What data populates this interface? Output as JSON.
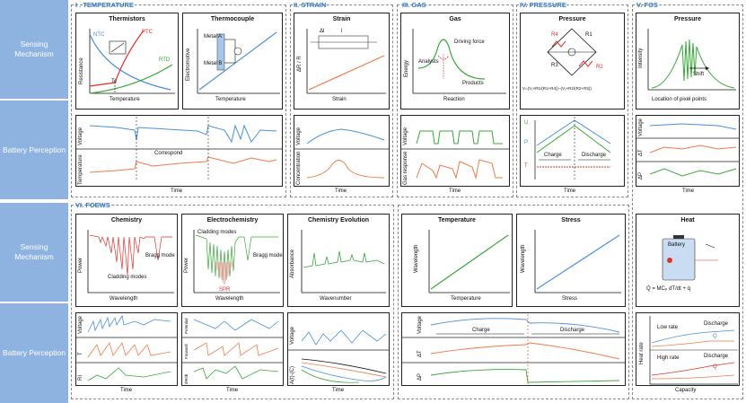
{
  "sidebar": {
    "top_mech": "Sensing Mechanism",
    "top_batt": "Battery Perception",
    "bot_mech": "Sensing Mechanism",
    "bot_batt": "Battery Perception"
  },
  "sections": {
    "temperature": "I . TEMPERATURE",
    "strain": "II. STRAIN",
    "gas": "III. GAS",
    "pressure": "IV. PRESSURE",
    "fos": "V. FOS",
    "foews": "VI. FOEWS"
  },
  "temperature": {
    "thermistors_title": "Thermistors",
    "thermocouple_title": "Thermocouple",
    "ntc": "NTC",
    "ptc": "PTC",
    "rtd": "RTD",
    "tc": "Tc",
    "resistance": "Resistance",
    "electromotive": "Electromotive",
    "temp_axis": "Temperature",
    "metal_a": "Metal A",
    "metal_b": "Metal B",
    "voltage": "Voltage",
    "temperature": "Temperature",
    "correspond": "Correspond",
    "time": "Time"
  },
  "strain": {
    "title": "Strain",
    "dr_r": "ΔR / R",
    "strain_axis": "Strain",
    "voltage": "Voltage",
    "concentration": "Concentration",
    "time": "Time",
    "dl": "Δl",
    "l": "l"
  },
  "gas": {
    "title": "Gas",
    "driving_force": "Driving force",
    "analysts": "Analysts",
    "products": "Products",
    "energy": "Energy",
    "reaction": "Reaction",
    "voltage": "Voltage",
    "gas_response": "Gas response",
    "time": "Time"
  },
  "pressure": {
    "title": "Pressure",
    "r1": "R1",
    "r2": "R2",
    "r3": "R3",
    "r4": "R4",
    "formula": "V=(V₁×R1/(R1+R4))−(V₁×R2/(R2+R3))",
    "u": "U",
    "p": "P",
    "t": "T",
    "charge": "Charge",
    "discharge": "Discharge",
    "time": "Time"
  },
  "fos": {
    "title": "Pressure",
    "intensity": "Intensity",
    "shift": "Shift",
    "location": "Location of pixel points",
    "voltage": "Voltage",
    "dt": "ΔT",
    "dp": "ΔP",
    "time": "Time"
  },
  "foews": {
    "chemistry_title": "Chemistry",
    "electrochem_title": "Electrochemistry",
    "chem_evo_title": "Chemistry Evolution",
    "power": "Power",
    "bragg_mode": "Bragg mode",
    "cladding_modes": "Cladding modes",
    "wavelength": "Wavelength",
    "spr": "SPR",
    "absorbance": "Absorbance",
    "wavenumber": "Wavenumber",
    "voltage": "Voltage",
    "t": "T",
    "ri": "RI",
    "potential": "Potential",
    "forward": "Forward",
    "dpsdt": "dΨ/dt",
    "a_c": "A(t)-(C)",
    "time": "Time"
  },
  "ts": {
    "temp_title": "Temperature",
    "stress_title": "Stress",
    "wavelength": "Wavelength",
    "temperature": "Temperature",
    "stress": "Stress",
    "voltage": "Voltage",
    "dt": "ΔT",
    "dp": "ΔP",
    "charge": "Charge",
    "discharge": "Discharge"
  },
  "heat": {
    "title": "Heat",
    "battery": "Battery",
    "formula": "Q̇ = MCₚ dT/dt + q̇",
    "low_rate": "Low rate",
    "high_rate": "High rate",
    "discharge": "Discharge",
    "q": "Q",
    "q_small": "q",
    "heat_rate": "Heat rate",
    "capacity": "Capacity"
  },
  "colors": {
    "accent": "#2e74c8",
    "sidebar": "#8fb3e0",
    "blue_line": "#4a8fdc",
    "orange_line": "#f07a4a",
    "green_line": "#3aa83a",
    "red": "#e0302a"
  }
}
